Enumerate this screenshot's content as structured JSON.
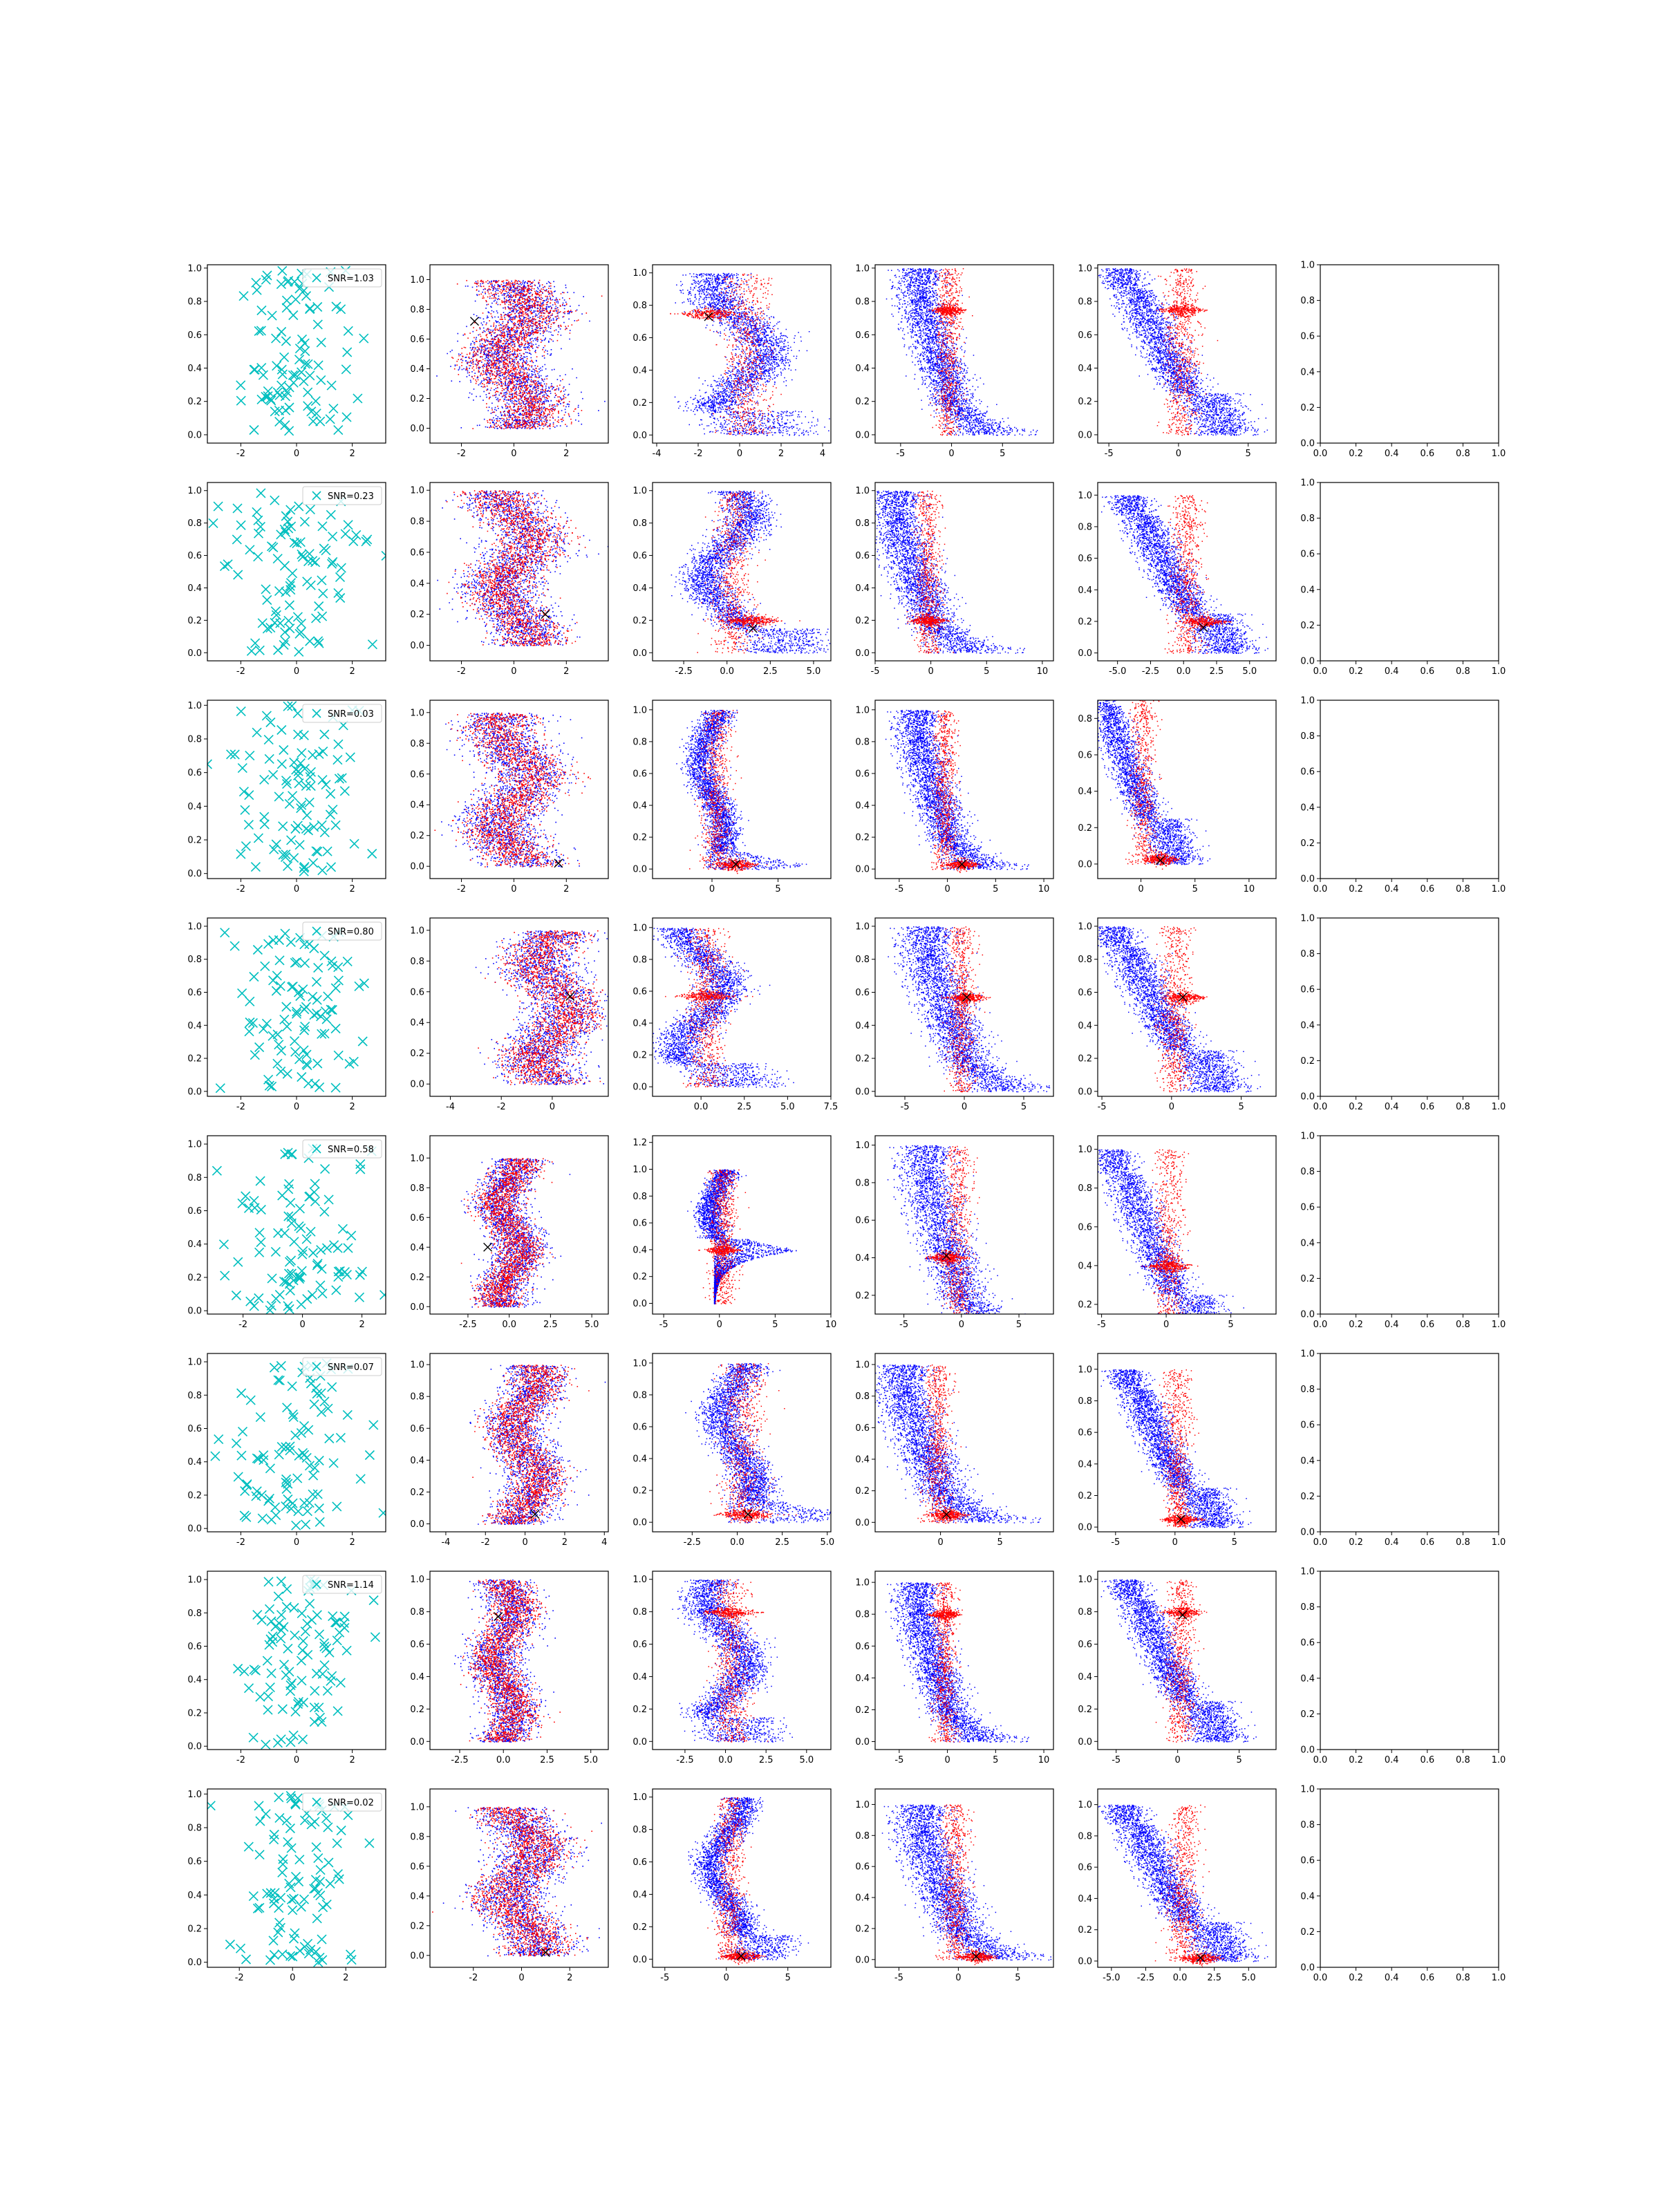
{
  "figure": {
    "description_rows": 8,
    "description_cols": 6
  },
  "colors": {
    "scatter_x": "#00bfbf",
    "blue": "#0000ff",
    "red": "#ff0000",
    "marker": "#000000",
    "axes": "#000000"
  },
  "chart_data": [
    {
      "type": "scatter",
      "label": "SNR=1.03",
      "legend": "top-right"
    },
    {
      "type": "scatter",
      "label": "SNR=0.23",
      "legend": "top-right"
    },
    {
      "type": "scatter",
      "label": "SNR=0.03",
      "legend": "top-right"
    },
    {
      "type": "scatter",
      "label": "SNR=0.80",
      "legend": "top-right"
    },
    {
      "type": "scatter",
      "label": "SNR=0.58",
      "legend": "top-right"
    },
    {
      "type": "scatter",
      "label": "SNR=0.07",
      "legend": "top-right"
    },
    {
      "type": "scatter",
      "label": "SNR=1.14",
      "legend": "top-right"
    },
    {
      "type": "scatter",
      "label": "SNR=0.02",
      "legend": "top-right"
    }
  ],
  "panels": [
    {
      "xlims": [
        [
          -3.2,
          3.2
        ],
        [
          -3.2,
          3.6
        ],
        [
          -4.2,
          4.4
        ],
        [
          -7.5,
          10
        ],
        [
          -5.8,
          7
        ]
      ],
      "xticks": [
        [
          -2,
          0,
          2
        ],
        [
          -2,
          0,
          2
        ],
        [
          -4,
          -2,
          0,
          2,
          4
        ],
        [
          -5,
          0,
          5
        ],
        [
          -5,
          0,
          5
        ]
      ],
      "ylims": [
        [
          -0.05,
          1.02
        ],
        [
          -0.1,
          1.1
        ],
        [
          -0.05,
          1.05
        ],
        [
          -0.05,
          1.02
        ],
        [
          -0.05,
          1.02
        ]
      ],
      "yticks": [
        [
          0,
          0.2,
          0.4,
          0.6,
          0.8,
          1.0
        ],
        [
          0,
          0.2,
          0.4,
          0.6,
          0.8,
          1.0
        ],
        [
          0,
          0.2,
          0.4,
          0.6,
          0.8,
          1.0
        ],
        [
          0,
          0.2,
          0.4,
          0.6,
          0.8,
          1.0
        ],
        [
          0,
          0.2,
          0.4,
          0.6,
          0.8,
          1.0
        ]
      ],
      "shape": "S",
      "knot": 0.75,
      "red_levels": [
        0.05,
        0.28
      ],
      "red_levels3": [
        0.73,
        0.63,
        0.32,
        0.08
      ],
      "red_levels4": [
        0.75,
        0.33,
        0.07
      ],
      "red_levels5": [
        0.74,
        0.35,
        0.1
      ],
      "x_marker": [
        [
          -1.5,
          0.72
        ],
        [
          -1.5,
          0.73
        ],
        null,
        null
      ]
    },
    {
      "xlims": [
        [
          -3.2,
          3.2
        ],
        [
          -3.2,
          3.6
        ],
        [
          -4.3,
          6
        ],
        [
          -5,
          11
        ],
        [
          -6.5,
          7
        ]
      ],
      "xticks": [
        [
          -2,
          0,
          2
        ],
        [
          -2,
          0,
          2
        ],
        [
          -2.5,
          0,
          2.5,
          5
        ],
        [
          -5,
          0,
          5,
          10
        ],
        [
          -5,
          -2.5,
          0,
          2.5,
          5
        ]
      ],
      "xticklabels": [
        null,
        null,
        [
          "-2.5",
          "0.0",
          "2.5",
          "5.0"
        ],
        null,
        [
          "-5.0",
          "-2.5",
          "0.0",
          "2.5",
          "5.0"
        ]
      ],
      "ylims": [
        [
          -0.05,
          1.05
        ],
        [
          -0.1,
          1.05
        ],
        [
          -0.05,
          1.05
        ],
        [
          -0.05,
          1.05
        ],
        [
          -0.05,
          1.08
        ]
      ],
      "yticks": [
        [
          0,
          0.2,
          0.4,
          0.6,
          0.8,
          1.0
        ],
        [
          0,
          0.2,
          0.4,
          0.6,
          0.8,
          1.0
        ],
        [
          0,
          0.2,
          0.4,
          0.6,
          0.8,
          1.0
        ],
        [
          0,
          0.2,
          0.4,
          0.6,
          0.8,
          1.0
        ],
        [
          0,
          0.2,
          0.4,
          0.6,
          0.8,
          1.0
        ]
      ],
      "shape": "S",
      "knot": 0.2,
      "x_marker": [
        [
          1.2,
          0.2
        ],
        [
          1.5,
          0.15
        ],
        null,
        [
          1.5,
          0.16
        ]
      ]
    },
    {
      "xlims": [
        [
          -3.2,
          3.2
        ],
        [
          -3.2,
          3.6
        ],
        [
          -4.5,
          9
        ],
        [
          -7.5,
          11
        ],
        [
          -4,
          12.5
        ]
      ],
      "xticks": [
        [
          -2,
          0,
          2
        ],
        [
          -2,
          0,
          2
        ],
        [
          0,
          5
        ],
        [
          -5,
          0,
          5,
          10
        ],
        [
          0,
          5,
          10
        ]
      ],
      "ylims": [
        [
          -0.03,
          1.03
        ],
        [
          -0.08,
          1.08
        ],
        [
          -0.06,
          1.06
        ],
        [
          -0.06,
          1.06
        ],
        [
          -0.08,
          0.9
        ]
      ],
      "yticks": [
        [
          0,
          0.2,
          0.4,
          0.6,
          0.8,
          1.0
        ],
        [
          0,
          0.2,
          0.4,
          0.6,
          0.8,
          1.0
        ],
        [
          0,
          0.2,
          0.4,
          0.6,
          0.8,
          1.0
        ],
        [
          0,
          0.2,
          0.4,
          0.6,
          0.8,
          1.0
        ],
        [
          0,
          0.2,
          0.4,
          0.6,
          0.8
        ]
      ],
      "shape": "L",
      "knot": 0.03,
      "x_marker": [
        [
          1.7,
          0.02
        ],
        [
          1.8,
          0.03
        ],
        [
          1.5,
          0.03
        ],
        [
          1.8,
          0.02
        ]
      ]
    },
    {
      "xlims": [
        [
          -3.2,
          3.2
        ],
        [
          -4.8,
          2.2
        ],
        [
          -2.8,
          7.5
        ],
        [
          -7.5,
          7.5
        ],
        [
          -5.3,
          7.5
        ]
      ],
      "xticks": [
        [
          -2,
          0,
          2
        ],
        [
          -4,
          -2,
          0
        ],
        [
          0,
          2.5,
          5,
          7.5
        ],
        [
          -5,
          0,
          5
        ],
        [
          -5,
          0,
          5
        ]
      ],
      "xticklabels": [
        null,
        null,
        [
          "0.0",
          "2.5",
          "5.0",
          "7.5"
        ],
        null,
        null
      ],
      "ylims": [
        [
          -0.03,
          1.05
        ],
        [
          -0.08,
          1.08
        ],
        [
          -0.06,
          1.06
        ],
        [
          -0.03,
          1.05
        ],
        [
          -0.03,
          1.05
        ]
      ],
      "yticks": [
        [
          0,
          0.2,
          0.4,
          0.6,
          0.8,
          1.0
        ],
        [
          0,
          0.2,
          0.4,
          0.6,
          0.8,
          1.0
        ],
        [
          0,
          0.2,
          0.4,
          0.6,
          0.8,
          1.0
        ],
        [
          0,
          0.2,
          0.4,
          0.6,
          0.8,
          1.0
        ],
        [
          0,
          0.2,
          0.4,
          0.6,
          0.8,
          1.0
        ]
      ],
      "shape": "S",
      "knot": 0.57,
      "x_marker": [
        [
          0.7,
          0.57
        ],
        null,
        [
          0.2,
          0.57
        ],
        [
          0.8,
          0.57
        ]
      ]
    },
    {
      "xlims": [
        [
          -3.2,
          2.8
        ],
        [
          -4.8,
          6
        ],
        [
          -6,
          10
        ],
        [
          -7.5,
          8
        ],
        [
          -5.3,
          8.5
        ]
      ],
      "xticks": [
        [
          -2,
          0,
          2
        ],
        [
          -2.5,
          0,
          2.5,
          5
        ],
        [
          -5,
          0,
          5,
          10
        ],
        [
          -5,
          0,
          5
        ],
        [
          -5,
          0,
          5
        ]
      ],
      "xticklabels": [
        null,
        [
          "-2.5",
          "0.0",
          "2.5",
          "5.0"
        ],
        null,
        null,
        null
      ],
      "ylims": [
        [
          -0.02,
          1.05
        ],
        [
          -0.05,
          1.15
        ],
        [
          -0.08,
          1.25
        ],
        [
          0.1,
          1.05
        ],
        [
          0.15,
          1.07
        ]
      ],
      "yticks": [
        [
          0,
          0.2,
          0.4,
          0.6,
          0.8,
          1.0
        ],
        [
          0,
          0.2,
          0.4,
          0.6,
          0.8,
          1.0
        ],
        [
          0,
          0.2,
          0.4,
          0.6,
          0.8,
          1.0,
          1.2
        ],
        [
          0.2,
          0.4,
          0.6,
          0.8,
          1.0
        ],
        [
          0.2,
          0.4,
          0.6,
          0.8,
          1.0
        ]
      ],
      "shape": "L",
      "knot": 0.4,
      "x_marker": [
        [
          -1.3,
          0.4
        ],
        null,
        [
          -1.3,
          0.41
        ],
        null
      ]
    },
    {
      "xlims": [
        [
          -3.2,
          3.2
        ],
        [
          -4.8,
          4.2
        ],
        [
          -4.7,
          5.2
        ],
        [
          -5.5,
          9.5
        ],
        [
          -6.5,
          8.5
        ]
      ],
      "xticks": [
        [
          -2,
          0,
          2
        ],
        [
          -4,
          -2,
          0,
          2,
          4
        ],
        [
          -2.5,
          0,
          2.5,
          5
        ],
        [
          0,
          5
        ],
        [
          -5,
          0,
          5
        ]
      ],
      "xticklabels": [
        null,
        null,
        [
          "-2.5",
          "0.0",
          "2.5",
          "5.0"
        ],
        null,
        null
      ],
      "ylims": [
        [
          -0.02,
          1.05
        ],
        [
          -0.05,
          1.07
        ],
        [
          -0.06,
          1.06
        ],
        [
          -0.06,
          1.07
        ],
        [
          -0.03,
          1.1
        ]
      ],
      "yticks": [
        [
          0,
          0.2,
          0.4,
          0.6,
          0.8,
          1.0
        ],
        [
          0,
          0.2,
          0.4,
          0.6,
          0.8,
          1.0
        ],
        [
          0,
          0.2,
          0.4,
          0.6,
          0.8,
          1.0
        ],
        [
          0,
          0.2,
          0.4,
          0.6,
          0.8,
          1.0
        ],
        [
          0,
          0.2,
          0.4,
          0.6,
          0.8,
          1.0
        ]
      ],
      "shape": "L",
      "knot": 0.05,
      "x_marker": [
        [
          0.5,
          0.06
        ],
        [
          0.6,
          0.05
        ],
        [
          0.5,
          0.05
        ],
        [
          0.5,
          0.05
        ]
      ]
    },
    {
      "xlims": [
        [
          -3.2,
          3.2
        ],
        [
          -4.2,
          6
        ],
        [
          -4.5,
          6.5
        ],
        [
          -7.5,
          11
        ],
        [
          -6.5,
          8
        ]
      ],
      "xticks": [
        [
          -2,
          0,
          2
        ],
        [
          -2.5,
          0,
          2.5,
          5
        ],
        [
          -2.5,
          0,
          2.5,
          5
        ],
        [
          -5,
          0,
          5,
          10
        ],
        [
          -5,
          0,
          5
        ]
      ],
      "xticklabels": [
        null,
        [
          "-2.5",
          "0.0",
          "2.5",
          "5.0"
        ],
        [
          "-2.5",
          "0.0",
          "2.5",
          "5.0"
        ],
        null,
        null
      ],
      "ylims": [
        [
          -0.02,
          1.05
        ],
        [
          -0.05,
          1.05
        ],
        [
          -0.05,
          1.05
        ],
        [
          -0.05,
          1.07
        ],
        [
          -0.05,
          1.05
        ]
      ],
      "yticks": [
        [
          0,
          0.2,
          0.4,
          0.6,
          0.8,
          1.0
        ],
        [
          0,
          0.2,
          0.4,
          0.6,
          0.8,
          1.0
        ],
        [
          0,
          0.2,
          0.4,
          0.6,
          0.8,
          1.0
        ],
        [
          0,
          0.2,
          0.4,
          0.6,
          0.8,
          1.0
        ],
        [
          0,
          0.2,
          0.4,
          0.6,
          0.8,
          1.0
        ]
      ],
      "shape": "S",
      "knot": 0.8,
      "x_marker": [
        [
          -0.3,
          0.77
        ],
        null,
        null,
        [
          0.4,
          0.78
        ]
      ]
    },
    {
      "xlims": [
        [
          -3.2,
          3.5
        ],
        [
          -3.8,
          3.6
        ],
        [
          -6,
          8.5
        ],
        [
          -7,
          8
        ],
        [
          -6,
          7
        ]
      ],
      "xticks": [
        [
          -2,
          0,
          2
        ],
        [
          -2,
          0,
          2
        ],
        [
          -5,
          0,
          5
        ],
        [
          -5,
          0,
          5
        ],
        [
          -5,
          -2.5,
          0,
          2.5,
          5
        ]
      ],
      "xticklabels": [
        null,
        null,
        null,
        null,
        [
          "-5.0",
          "-2.5",
          "0.0",
          "2.5",
          "5.0"
        ]
      ],
      "ylims": [
        [
          -0.03,
          1.03
        ],
        [
          -0.08,
          1.12
        ],
        [
          -0.05,
          1.05
        ],
        [
          -0.05,
          1.1
        ],
        [
          -0.04,
          1.1
        ]
      ],
      "yticks": [
        [
          0,
          0.2,
          0.4,
          0.6,
          0.8,
          1.0
        ],
        [
          0,
          0.2,
          0.4,
          0.6,
          0.8,
          1.0
        ],
        [
          0,
          0.2,
          0.4,
          0.6,
          0.8,
          1.0
        ],
        [
          0,
          0.2,
          0.4,
          0.6,
          0.8,
          1.0
        ],
        [
          0,
          0.2,
          0.4,
          0.6,
          0.8,
          1.0
        ]
      ],
      "shape": "S",
      "knot": 0.02,
      "x_marker": [
        [
          1,
          0.02
        ],
        [
          1.2,
          0.02
        ],
        [
          1.5,
          0.02
        ],
        [
          1.5,
          0.02
        ]
      ]
    }
  ],
  "empty_panel": {
    "xticks": [
      "0.0",
      "0.2",
      "0.4",
      "0.6",
      "0.8",
      "1.0"
    ],
    "yticks": [
      "0.0",
      "0.2",
      "0.4",
      "0.6",
      "0.8",
      "1.0"
    ]
  }
}
